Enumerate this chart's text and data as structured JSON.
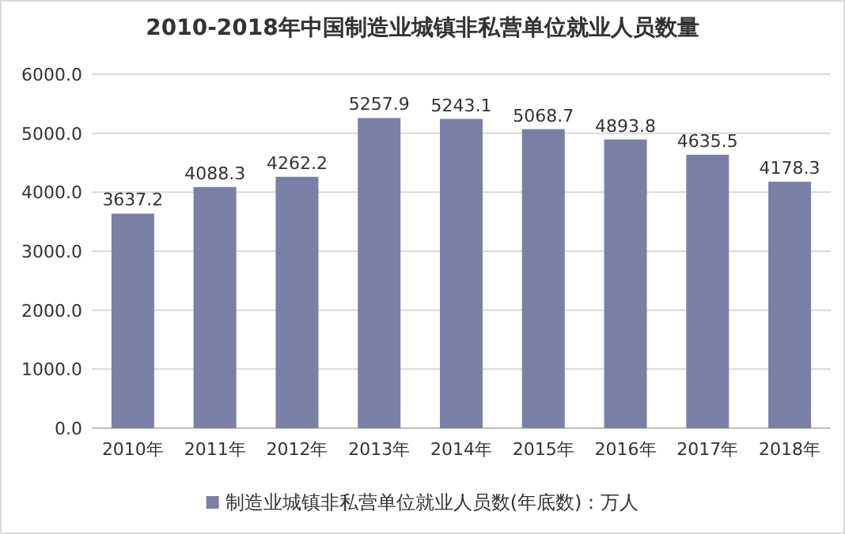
{
  "chart_data": {
    "type": "bar",
    "title": "2010-2018年中国制造业城镇非私营单位就业人员数量",
    "categories": [
      "2010年",
      "2011年",
      "2012年",
      "2013年",
      "2014年",
      "2015年",
      "2016年",
      "2017年",
      "2018年"
    ],
    "series": [
      {
        "name": "制造业城镇非私营单位就业人员数(年底数)：万人",
        "color": "#7b7fa6",
        "values": [
          3637.2,
          4088.3,
          4262.2,
          5257.9,
          5243.1,
          5068.7,
          4893.8,
          4635.5,
          4178.3
        ]
      }
    ],
    "ylim": [
      0,
      6000
    ],
    "yticks": [
      {
        "value": 0,
        "label": "0.0"
      },
      {
        "value": 1000,
        "label": "1000.0"
      },
      {
        "value": 2000,
        "label": "2000.0"
      },
      {
        "value": 3000,
        "label": "3000.0"
      },
      {
        "value": 4000,
        "label": "4000.0"
      },
      {
        "value": 5000,
        "label": "5000.0"
      },
      {
        "value": 6000,
        "label": "6000.0"
      }
    ],
    "grid": "y",
    "legend": "bottom",
    "data_labels": true
  }
}
